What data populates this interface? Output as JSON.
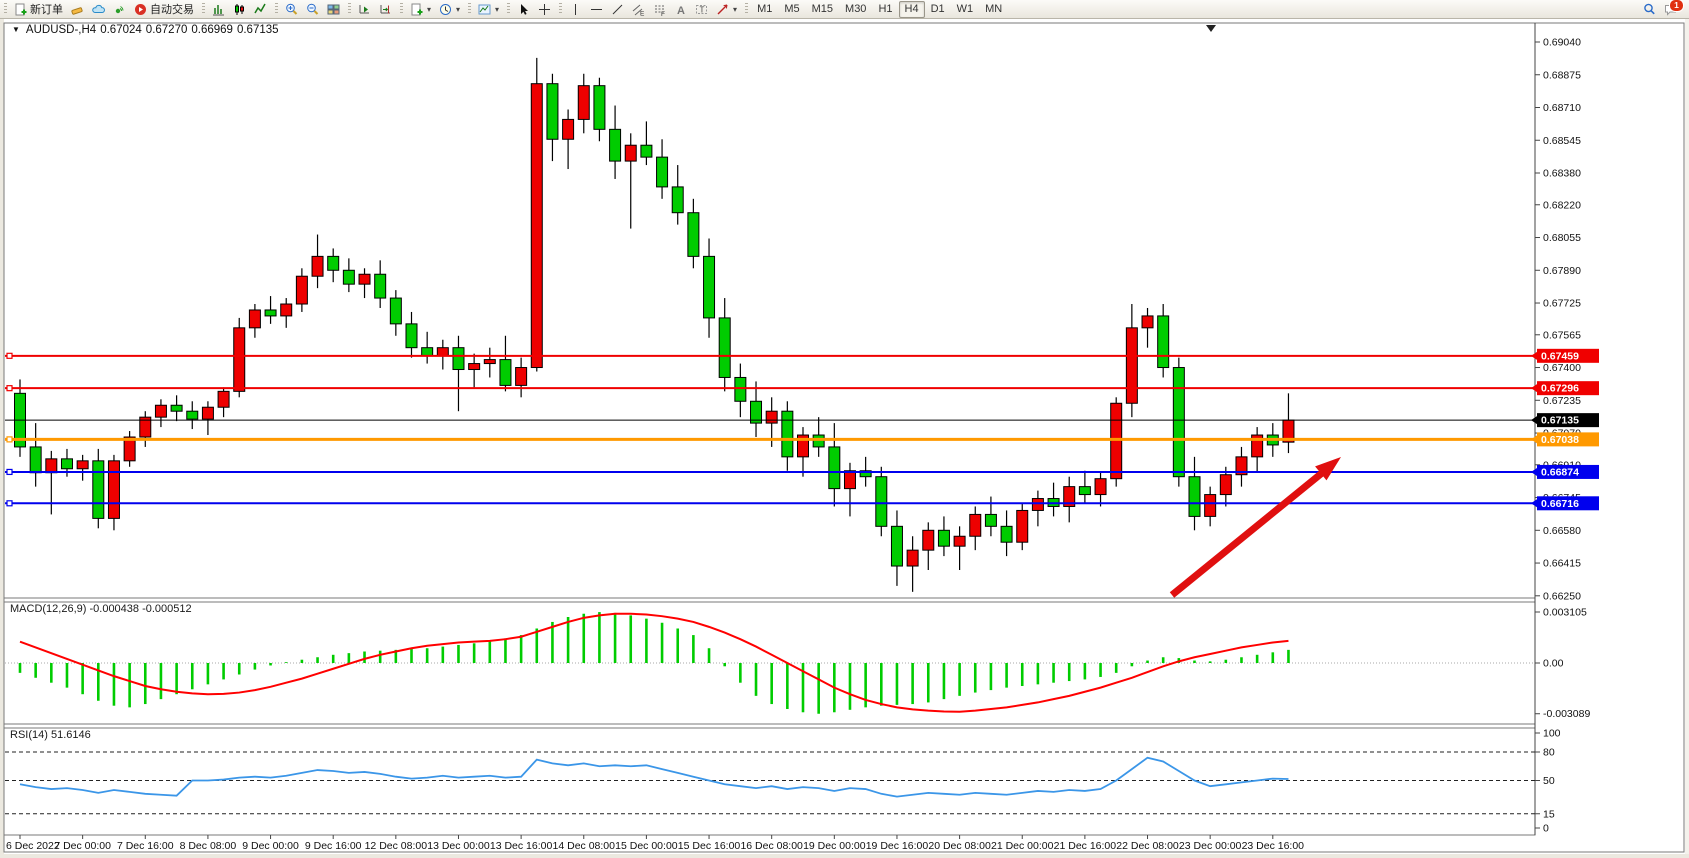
{
  "toolbar": {
    "buttons": [
      {
        "name": "new-order-button",
        "icon": "doc-plus",
        "label": "新订单"
      },
      {
        "name": "eraser-button",
        "icon": "eraser"
      },
      {
        "name": "cloud-sync-button",
        "icon": "cloud"
      },
      {
        "name": "signals-button",
        "icon": "signal"
      },
      {
        "name": "auto-trading-button",
        "icon": "play",
        "label": "自动交易"
      },
      {
        "sep": true
      },
      {
        "name": "bar-chart-button",
        "icon": "bars"
      },
      {
        "name": "candlestick-chart-button",
        "icon": "candles"
      },
      {
        "name": "line-chart-button",
        "icon": "linechart"
      },
      {
        "sep": true
      },
      {
        "name": "zoom-in-button",
        "icon": "zoom-in"
      },
      {
        "name": "zoom-out-button",
        "icon": "zoom-out"
      },
      {
        "name": "tile-windows-button",
        "icon": "tiles"
      },
      {
        "sep": true
      },
      {
        "name": "auto-scroll-button",
        "icon": "scroll-end"
      },
      {
        "name": "chart-shift-button",
        "icon": "shift"
      },
      {
        "sep": true
      },
      {
        "name": "new-chart-button",
        "icon": "doc-plus",
        "caret": true
      },
      {
        "name": "profiles-button",
        "icon": "clock",
        "caret": true
      },
      {
        "sep": true
      },
      {
        "name": "template-button",
        "icon": "image",
        "caret": true
      },
      {
        "sep": true
      },
      {
        "name": "cursor-button",
        "icon": "cursor"
      },
      {
        "name": "crosshair-button",
        "icon": "crosshair"
      },
      {
        "sep": true
      },
      {
        "name": "vertical-line-button",
        "icon": "vline"
      },
      {
        "name": "horizontal-line-button",
        "icon": "hline"
      },
      {
        "name": "trendline-button",
        "icon": "trend"
      },
      {
        "name": "equidistant-channel-button",
        "icon": "channel"
      },
      {
        "name": "fibonacci-button",
        "icon": "fibo"
      },
      {
        "name": "text-button",
        "icon": "textA"
      },
      {
        "name": "text-label-button",
        "icon": "labelT"
      },
      {
        "name": "arrows-button",
        "icon": "arrows",
        "caret": true
      },
      {
        "sep": true
      }
    ],
    "timeframes": [
      "M1",
      "M5",
      "M15",
      "M30",
      "H1",
      "H4",
      "D1",
      "W1",
      "MN"
    ],
    "active_timeframe": "H4",
    "search_icon": "search",
    "notification_badge": "1"
  },
  "chart": {
    "symbol_period": "AUDUSD-,H4",
    "open": "0.67024",
    "high": "0.67270",
    "low": "0.66969",
    "close": "0.67135"
  },
  "indicators": {
    "macd": {
      "name": "MACD(12,26,9)",
      "values": "-0.000438 -0.000512"
    },
    "rsi": {
      "name": "RSI(14)",
      "value": "51.6146"
    }
  },
  "chart_data": {
    "type": "candlestick",
    "symbol": "AUDUSD",
    "timeframe": "H4",
    "title": "AUDUSD-,H4 0.67024 0.67270 0.66969 0.67135",
    "current_bar": {
      "open": 0.67024,
      "high": 0.6727,
      "low": 0.66969,
      "close": 0.67135
    },
    "up_color": "#EE0000",
    "down_color": "#00CC00",
    "price_axis_ticks": [
      "0.69040",
      "0.68875",
      "0.68710",
      "0.68545",
      "0.68380",
      "0.68220",
      "0.68055",
      "0.67890",
      "0.67725",
      "0.67565",
      "0.67400",
      "0.67235",
      "0.67070",
      "0.66910",
      "0.66745",
      "0.66580",
      "0.66415",
      "0.66250"
    ],
    "price_scale": {
      "top_tick": 0.6904,
      "bottom_tick": 0.6625
    },
    "horizontal_lines": [
      {
        "label": "0.67459",
        "price": 0.67459,
        "color": "#F00000",
        "width": 2,
        "role": "resistance"
      },
      {
        "label": "0.67296",
        "price": 0.67296,
        "color": "#F00000",
        "width": 2,
        "role": "resistance"
      },
      {
        "label": "0.67135",
        "price": 0.67135,
        "color": "#000000",
        "width": 1,
        "role": "current-price"
      },
      {
        "label": "0.67038",
        "price": 0.67038,
        "color": "#FF9900",
        "width": 3,
        "role": "pivot"
      },
      {
        "label": "0.66874",
        "price": 0.66874,
        "color": "#0000EE",
        "width": 2,
        "role": "support"
      },
      {
        "label": "0.66716",
        "price": 0.66716,
        "color": "#0000EE",
        "width": 2,
        "role": "support"
      }
    ],
    "candles": [
      [
        0.6727,
        0.6734,
        0.6695,
        0.67
      ],
      [
        0.67,
        0.6712,
        0.668,
        0.6687
      ],
      [
        0.6687,
        0.6698,
        0.6666,
        0.6694
      ],
      [
        0.6694,
        0.6699,
        0.6685,
        0.6689
      ],
      [
        0.6689,
        0.6696,
        0.6683,
        0.6693
      ],
      [
        0.6693,
        0.6699,
        0.6659,
        0.6664
      ],
      [
        0.6664,
        0.6696,
        0.6658,
        0.6693
      ],
      [
        0.6693,
        0.6708,
        0.669,
        0.6705
      ],
      [
        0.6705,
        0.6718,
        0.67,
        0.6715
      ],
      [
        0.6715,
        0.6724,
        0.671,
        0.6721
      ],
      [
        0.6721,
        0.6726,
        0.6713,
        0.6718
      ],
      [
        0.6718,
        0.6723,
        0.6709,
        0.6714
      ],
      [
        0.6714,
        0.6723,
        0.6706,
        0.672
      ],
      [
        0.672,
        0.673,
        0.6715,
        0.6728
      ],
      [
        0.6728,
        0.6765,
        0.6725,
        0.676
      ],
      [
        0.676,
        0.6772,
        0.6755,
        0.6769
      ],
      [
        0.6769,
        0.6776,
        0.6762,
        0.6766
      ],
      [
        0.6766,
        0.6775,
        0.676,
        0.6772
      ],
      [
        0.6772,
        0.679,
        0.6768,
        0.6786
      ],
      [
        0.6786,
        0.6807,
        0.678,
        0.6796
      ],
      [
        0.6796,
        0.68,
        0.6783,
        0.6789
      ],
      [
        0.6789,
        0.6795,
        0.6778,
        0.6782
      ],
      [
        0.6782,
        0.679,
        0.6775,
        0.6787
      ],
      [
        0.6787,
        0.6794,
        0.677,
        0.6775
      ],
      [
        0.6775,
        0.6779,
        0.6756,
        0.6762
      ],
      [
        0.6762,
        0.6768,
        0.6745,
        0.675
      ],
      [
        0.675,
        0.6758,
        0.6742,
        0.6746
      ],
      [
        0.6746,
        0.6754,
        0.6739,
        0.675
      ],
      [
        0.675,
        0.6756,
        0.6718,
        0.6739
      ],
      [
        0.6739,
        0.6747,
        0.673,
        0.6742
      ],
      [
        0.6742,
        0.675,
        0.6735,
        0.6744
      ],
      [
        0.6744,
        0.6756,
        0.6728,
        0.6731
      ],
      [
        0.6731,
        0.6745,
        0.6725,
        0.674
      ],
      [
        0.674,
        0.6896,
        0.6738,
        0.6883
      ],
      [
        0.6883,
        0.6888,
        0.6844,
        0.6855
      ],
      [
        0.6855,
        0.687,
        0.684,
        0.6865
      ],
      [
        0.6865,
        0.6888,
        0.6858,
        0.6882
      ],
      [
        0.6882,
        0.6886,
        0.6854,
        0.686
      ],
      [
        0.686,
        0.6872,
        0.6835,
        0.6844
      ],
      [
        0.6844,
        0.6858,
        0.681,
        0.6852
      ],
      [
        0.6852,
        0.6864,
        0.6842,
        0.6846
      ],
      [
        0.6846,
        0.6855,
        0.6825,
        0.6831
      ],
      [
        0.6831,
        0.6842,
        0.6812,
        0.6818
      ],
      [
        0.6818,
        0.6825,
        0.679,
        0.6796
      ],
      [
        0.6796,
        0.6805,
        0.6755,
        0.6765
      ],
      [
        0.6765,
        0.6775,
        0.6728,
        0.6735
      ],
      [
        0.6735,
        0.6742,
        0.6715,
        0.6723
      ],
      [
        0.6723,
        0.6733,
        0.6705,
        0.6712
      ],
      [
        0.6712,
        0.6725,
        0.67,
        0.6718
      ],
      [
        0.6718,
        0.6723,
        0.6688,
        0.6695
      ],
      [
        0.6695,
        0.671,
        0.6685,
        0.6706
      ],
      [
        0.6706,
        0.6715,
        0.6695,
        0.67
      ],
      [
        0.67,
        0.6712,
        0.667,
        0.6679
      ],
      [
        0.6679,
        0.6692,
        0.6665,
        0.6688
      ],
      [
        0.6688,
        0.6695,
        0.668,
        0.6685
      ],
      [
        0.6685,
        0.669,
        0.6655,
        0.666
      ],
      [
        0.666,
        0.6668,
        0.663,
        0.664
      ],
      [
        0.664,
        0.6655,
        0.6627,
        0.6648
      ],
      [
        0.6648,
        0.6662,
        0.6638,
        0.6658
      ],
      [
        0.6658,
        0.6665,
        0.6645,
        0.665
      ],
      [
        0.665,
        0.666,
        0.6638,
        0.6655
      ],
      [
        0.6655,
        0.667,
        0.6648,
        0.6666
      ],
      [
        0.6666,
        0.6675,
        0.6655,
        0.666
      ],
      [
        0.666,
        0.6668,
        0.6645,
        0.6652
      ],
      [
        0.6652,
        0.6672,
        0.6648,
        0.6668
      ],
      [
        0.6668,
        0.6678,
        0.666,
        0.6674
      ],
      [
        0.6674,
        0.6682,
        0.6665,
        0.667
      ],
      [
        0.667,
        0.6685,
        0.6662,
        0.668
      ],
      [
        0.668,
        0.6688,
        0.6672,
        0.6676
      ],
      [
        0.6676,
        0.6687,
        0.667,
        0.6684
      ],
      [
        0.6684,
        0.6725,
        0.668,
        0.6722
      ],
      [
        0.6722,
        0.6772,
        0.6715,
        0.676
      ],
      [
        0.676,
        0.677,
        0.675,
        0.6766
      ],
      [
        0.6766,
        0.6772,
        0.6735,
        0.674
      ],
      [
        0.674,
        0.6745,
        0.668,
        0.6685
      ],
      [
        0.6685,
        0.6695,
        0.6658,
        0.6665
      ],
      [
        0.6665,
        0.668,
        0.666,
        0.6676
      ],
      [
        0.6676,
        0.669,
        0.667,
        0.6686
      ],
      [
        0.6686,
        0.67,
        0.668,
        0.6695
      ],
      [
        0.6695,
        0.671,
        0.6687,
        0.6706
      ],
      [
        0.6706,
        0.6712,
        0.6695,
        0.6701
      ],
      [
        0.67024,
        0.6727,
        0.66969,
        0.67135
      ]
    ],
    "macd": {
      "params": "12,26,9",
      "main_value": -0.000438,
      "signal_value": -0.000512,
      "scale_labels": [
        "0.003105",
        "0.00",
        "-0.003089"
      ],
      "scale_max": 0.003105,
      "scale_min": -0.003089,
      "hist_color": "#00CC00",
      "line_color": "#FF0000",
      "histogram_x1000": [
        -0.6,
        -0.9,
        -1.2,
        -1.5,
        -1.9,
        -2.3,
        -2.6,
        -2.7,
        -2.5,
        -2.2,
        -1.9,
        -1.6,
        -1.3,
        -1.0,
        -0.7,
        -0.4,
        -0.15,
        0.05,
        0.2,
        0.35,
        0.5,
        0.6,
        0.7,
        0.75,
        0.8,
        0.85,
        0.9,
        1.0,
        1.1,
        1.2,
        1.35,
        1.5,
        1.7,
        2.1,
        2.5,
        2.8,
        3.0,
        3.1,
        3.05,
        2.9,
        2.7,
        2.45,
        2.1,
        1.7,
        0.9,
        -0.2,
        -1.2,
        -2.0,
        -2.5,
        -2.8,
        -3.0,
        -3.09,
        -3.0,
        -2.85,
        -2.7,
        -2.6,
        -2.55,
        -2.5,
        -2.4,
        -2.2,
        -2.0,
        -1.8,
        -1.65,
        -1.5,
        -1.4,
        -1.3,
        -1.2,
        -1.1,
        -1.0,
        -0.85,
        -0.6,
        -0.2,
        0.15,
        0.35,
        0.3,
        0.15,
        0.1,
        0.2,
        0.35,
        0.5,
        0.65,
        0.8
      ],
      "signal_x1000": [
        1.3,
        0.95,
        0.6,
        0.25,
        -0.1,
        -0.45,
        -0.8,
        -1.1,
        -1.4,
        -1.6,
        -1.75,
        -1.85,
        -1.9,
        -1.88,
        -1.8,
        -1.65,
        -1.45,
        -1.2,
        -0.95,
        -0.65,
        -0.35,
        -0.05,
        0.25,
        0.5,
        0.7,
        0.9,
        1.05,
        1.15,
        1.25,
        1.3,
        1.35,
        1.45,
        1.6,
        1.9,
        2.2,
        2.5,
        2.75,
        2.9,
        3.0,
        3.0,
        2.95,
        2.85,
        2.7,
        2.5,
        2.2,
        1.85,
        1.45,
        1.0,
        0.5,
        0.0,
        -0.5,
        -1.0,
        -1.5,
        -1.9,
        -2.25,
        -2.5,
        -2.7,
        -2.82,
        -2.9,
        -2.95,
        -2.97,
        -2.9,
        -2.8,
        -2.7,
        -2.55,
        -2.4,
        -2.2,
        -2.0,
        -1.75,
        -1.5,
        -1.2,
        -0.9,
        -0.55,
        -0.2,
        0.1,
        0.35,
        0.55,
        0.75,
        0.95,
        1.1,
        1.25,
        1.35
      ]
    },
    "rsi": {
      "period": 14,
      "current": 51.6146,
      "color": "#3B96E8",
      "levels": [
        {
          "label": "100",
          "value": 100,
          "dashed": false
        },
        {
          "label": "80",
          "value": 80,
          "dashed": true
        },
        {
          "label": "50",
          "value": 50,
          "dashed": true
        },
        {
          "label": "15",
          "value": 15,
          "dashed": true
        },
        {
          "label": "0",
          "value": 0,
          "dashed": false
        }
      ],
      "values": [
        46,
        43,
        41,
        42,
        40,
        37,
        40,
        38,
        36,
        35,
        34,
        50,
        50,
        51,
        53,
        54,
        53,
        55,
        58,
        61,
        60,
        58,
        59,
        57,
        54,
        52,
        53,
        55,
        53,
        54,
        55,
        53,
        54,
        72,
        68,
        66,
        68,
        65,
        66,
        65,
        66,
        62,
        58,
        54,
        50,
        46,
        44,
        42,
        44,
        41,
        43,
        42,
        39,
        42,
        41,
        36,
        33,
        35,
        37,
        36,
        35,
        37,
        36,
        35,
        37,
        39,
        38,
        40,
        39,
        41,
        50,
        62,
        74,
        70,
        60,
        50,
        44,
        46,
        48,
        50,
        52,
        51.6
      ]
    },
    "time_axis": [
      "6 Dec 2022",
      "7 Dec 00:00",
      "7 Dec 16:00",
      "8 Dec 08:00",
      "9 Dec 00:00",
      "9 Dec 16:00",
      "12 Dec 08:00",
      "13 Dec 00:00",
      "13 Dec 16:00",
      "14 Dec 08:00",
      "15 Dec 00:00",
      "15 Dec 16:00",
      "16 Dec 08:00",
      "19 Dec 00:00",
      "19 Dec 16:00",
      "20 Dec 08:00",
      "21 Dec 00:00",
      "21 Dec 16:00",
      "22 Dec 08:00",
      "23 Dec 00:00",
      "23 Dec 16:00"
    ],
    "annotation": {
      "type": "arrow",
      "color": "#E00F0F",
      "direction": "up-right"
    }
  }
}
